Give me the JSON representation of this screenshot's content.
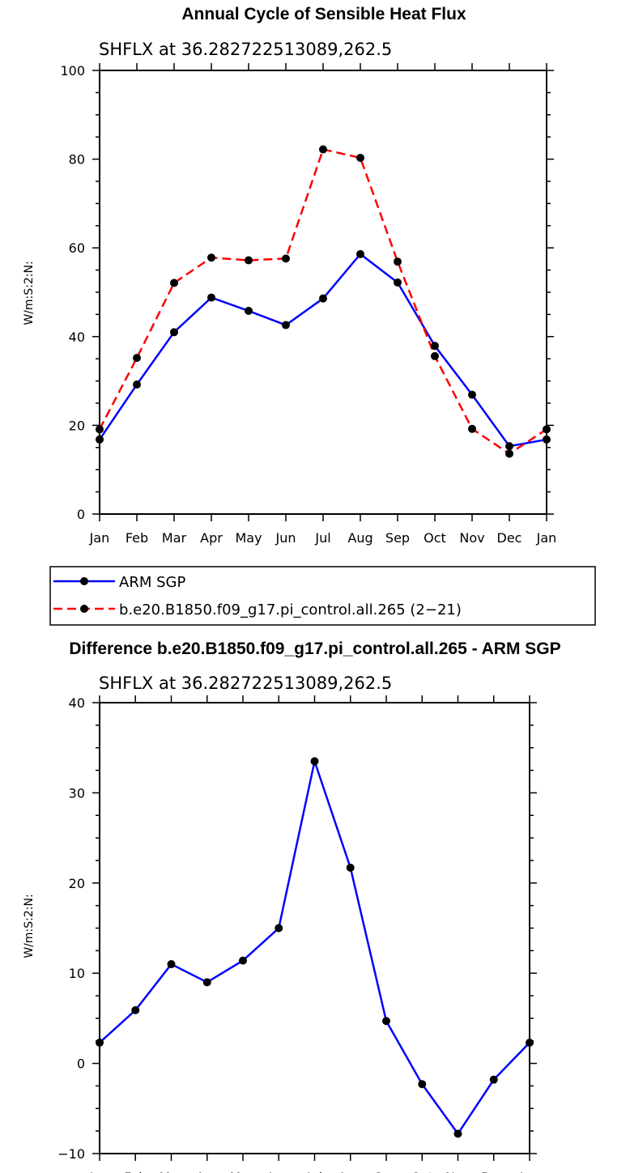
{
  "chart_data": [
    {
      "type": "line",
      "title": "Annual Cycle of Sensible Heat Flux",
      "subtitle": "SHFLX at 36.282722513089,262.5",
      "ylabel": "W/m:S:2:N:",
      "ylim": [
        0,
        100
      ],
      "yticks": [
        0,
        20,
        40,
        60,
        80,
        100
      ],
      "categories": [
        "Jan",
        "Feb",
        "Mar",
        "Apr",
        "May",
        "Jun",
        "Jul",
        "Aug",
        "Sep",
        "Oct",
        "Nov",
        "Dec",
        "Jan"
      ],
      "legend_position": "bottom-left",
      "series": [
        {
          "name": "ARM SGP",
          "color": "#0000ff",
          "dash": "solid",
          "values": [
            16.8,
            29.2,
            41.0,
            48.8,
            45.8,
            42.6,
            48.6,
            58.6,
            52.2,
            37.9,
            26.9,
            15.3,
            16.8
          ]
        },
        {
          "name": "b.e20.B1850.f09_g17.pi_control.all.265 (2−21)",
          "color": "#ff0000",
          "dash": "dashed",
          "values": [
            19.1,
            35.2,
            52.1,
            57.8,
            57.2,
            57.6,
            82.2,
            80.3,
            56.9,
            35.6,
            19.2,
            13.6,
            19.1
          ]
        }
      ]
    },
    {
      "type": "line",
      "title": "Difference b.e20.B1850.f09_g17.pi_control.all.265 - ARM SGP",
      "subtitle": "SHFLX at 36.282722513089,262.5",
      "ylabel": "W/m:S:2:N:",
      "ylim": [
        -10,
        40
      ],
      "yticks": [
        -10,
        0,
        10,
        20,
        30,
        40
      ],
      "categories": [
        "Jan",
        "Feb",
        "Mar",
        "Apr",
        "May",
        "Jun",
        "Jul",
        "Aug",
        "Sep",
        "Oct",
        "Nov",
        "Dec",
        "Jan"
      ],
      "series": [
        {
          "color": "#0000ff",
          "dash": "solid",
          "values": [
            2.3,
            5.9,
            11.0,
            9.0,
            11.4,
            15.0,
            33.5,
            21.7,
            4.7,
            -2.3,
            -7.8,
            -1.8,
            2.3
          ]
        }
      ]
    }
  ]
}
